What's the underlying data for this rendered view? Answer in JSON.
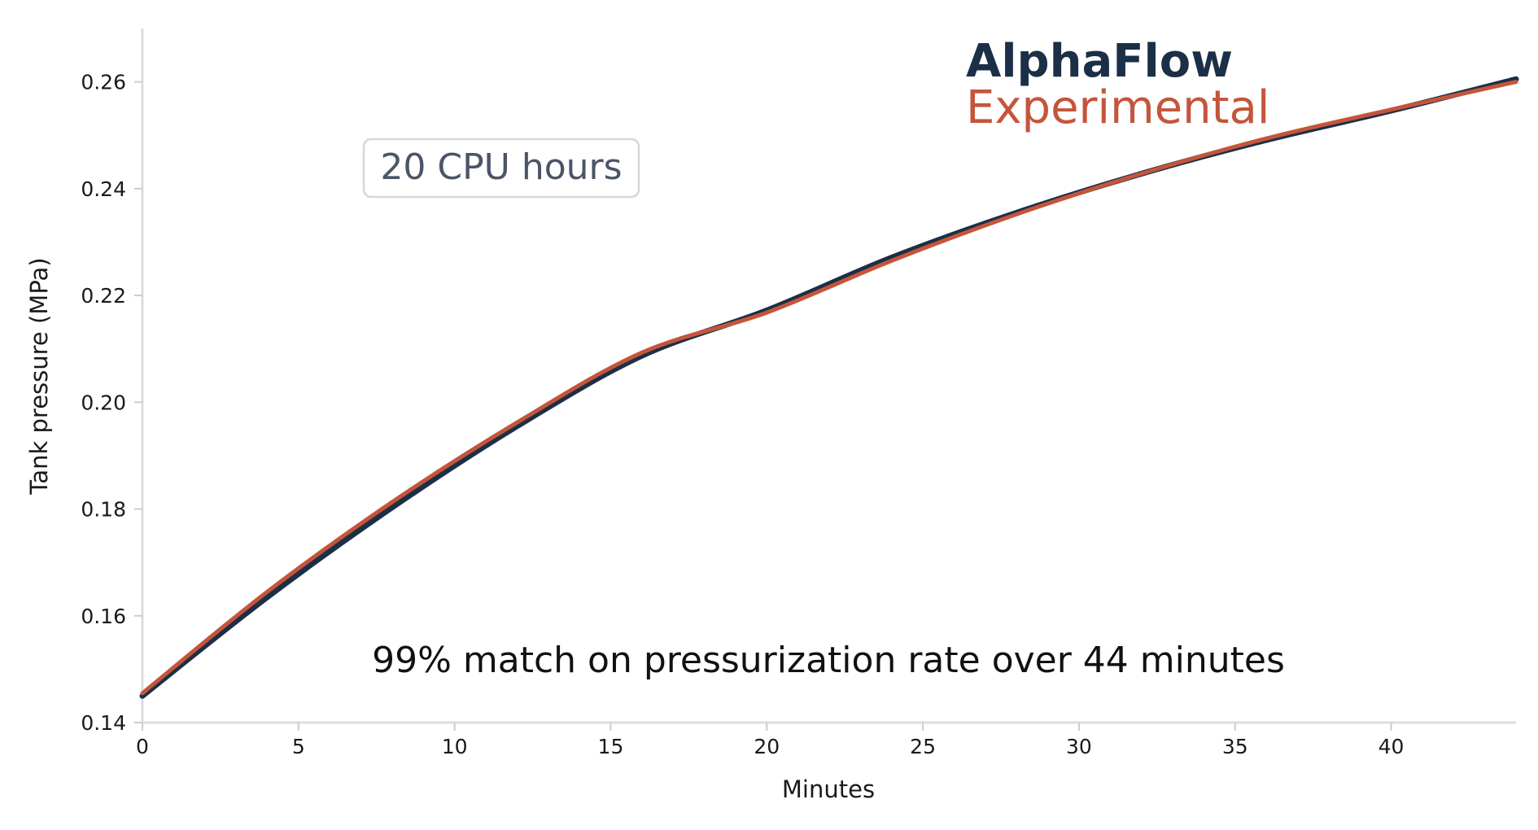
{
  "chart_data": {
    "type": "line",
    "xlabel": "Minutes",
    "ylabel": "Tank pressure (MPa)",
    "xlim": [
      0,
      44
    ],
    "ylim": [
      0.14,
      0.27
    ],
    "x_ticks": [
      0,
      5,
      10,
      15,
      20,
      25,
      30,
      35,
      40
    ],
    "y_ticks": [
      0.14,
      0.16,
      0.18,
      0.2,
      0.22,
      0.24,
      0.26
    ],
    "y_tick_labels": [
      "0.14",
      "0.16",
      "0.18",
      "0.20",
      "0.22",
      "0.24",
      "0.26"
    ],
    "grid": false,
    "legend_position": "top-right",
    "series": [
      {
        "name": "AlphaFlow",
        "color": "#1b2f47",
        "x": [
          0,
          4,
          8,
          12,
          16,
          20,
          24,
          28,
          32,
          36,
          40,
          44
        ],
        "values": [
          0.145,
          0.1635,
          0.1803,
          0.1955,
          0.2087,
          0.2172,
          0.2271,
          0.2355,
          0.2428,
          0.2491,
          0.2546,
          0.2605
        ]
      },
      {
        "name": "Experimental",
        "color": "#c4553b",
        "x": [
          0,
          4,
          8,
          12,
          16,
          20,
          24,
          28,
          32,
          36,
          40,
          44
        ],
        "values": [
          0.1455,
          0.1645,
          0.1813,
          0.1962,
          0.2093,
          0.2168,
          0.2265,
          0.2352,
          0.2428,
          0.2494,
          0.2548,
          0.26
        ]
      }
    ],
    "annotations": {
      "cpu_box": "20 CPU hours",
      "match_text": "99% match on pressurization rate over 44 minutes"
    }
  }
}
